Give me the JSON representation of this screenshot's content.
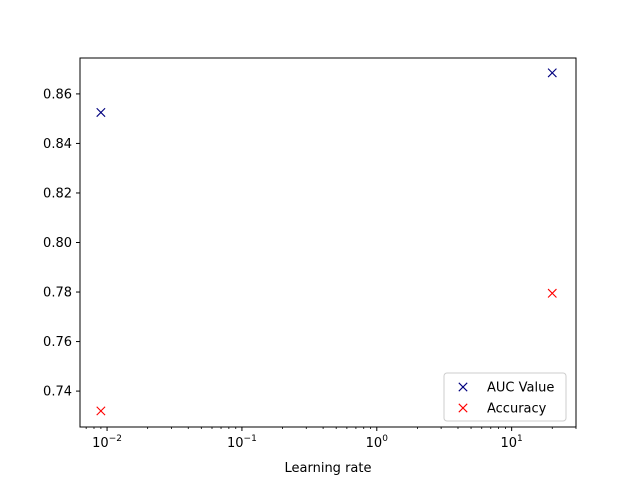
{
  "chart_data": {
    "type": "scatter",
    "title": "",
    "xlabel": "Learning rate",
    "ylabel": "",
    "xscale": "log",
    "xlim": [
      0.0063,
      30
    ],
    "ylim": [
      0.7255,
      0.8745
    ],
    "x_ticks": [
      0.01,
      0.1,
      1,
      10
    ],
    "x_tick_labels": [
      {
        "base": "10",
        "exp": "−2"
      },
      {
        "base": "10",
        "exp": "−1"
      },
      {
        "base": "10",
        "exp": "0"
      },
      {
        "base": "10",
        "exp": "1"
      }
    ],
    "y_ticks": [
      0.74,
      0.76,
      0.78,
      0.8,
      0.82,
      0.84,
      0.86
    ],
    "y_tick_labels": [
      "0.74",
      "0.76",
      "0.78",
      "0.80",
      "0.82",
      "0.84",
      "0.86"
    ],
    "grid": false,
    "legend_position": "lower-right",
    "series": [
      {
        "name": "AUC Value",
        "color": "#00007f",
        "marker": "x",
        "x": [
          0.009,
          20
        ],
        "y": [
          0.8525,
          0.8685
        ]
      },
      {
        "name": "Accuracy",
        "color": "#ff0000",
        "marker": "x",
        "x": [
          0.009,
          20
        ],
        "y": [
          0.732,
          0.7795
        ]
      }
    ]
  }
}
